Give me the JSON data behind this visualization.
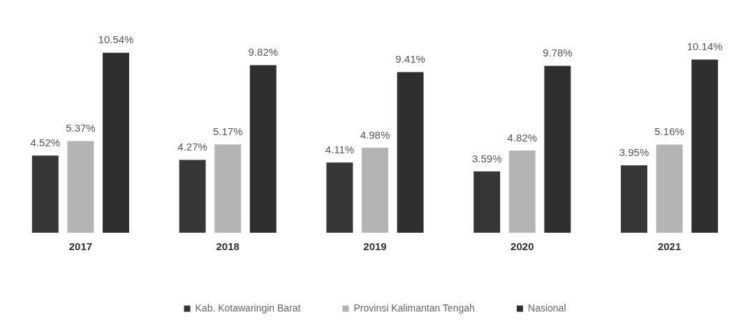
{
  "chart_data": {
    "type": "bar",
    "categories": [
      "2017",
      "2018",
      "2019",
      "2020",
      "2021"
    ],
    "series": [
      {
        "name": "Kab. Kotawaringin Barat",
        "color": "#363636",
        "values": [
          4.52,
          4.27,
          4.11,
          3.59,
          3.95
        ],
        "value_labels": [
          "4.52%",
          "4.27%",
          "4.11%",
          "3.59%",
          "3.95%"
        ]
      },
      {
        "name": "Provinsi Kalimantan Tengah",
        "color": "#b4b4b4",
        "values": [
          5.37,
          5.17,
          4.98,
          4.82,
          5.16
        ],
        "value_labels": [
          "5.37%",
          "5.17%",
          "4.98%",
          "4.82%",
          "5.16%"
        ]
      },
      {
        "name": "Nasional",
        "color": "#2e2f2f",
        "values": [
          10.54,
          9.82,
          9.41,
          9.78,
          10.14
        ],
        "value_labels": [
          "10.54%",
          "9.82%",
          "9.41%",
          "9.78%",
          "10.14%"
        ]
      }
    ],
    "legend": "bottom",
    "grid": false
  }
}
